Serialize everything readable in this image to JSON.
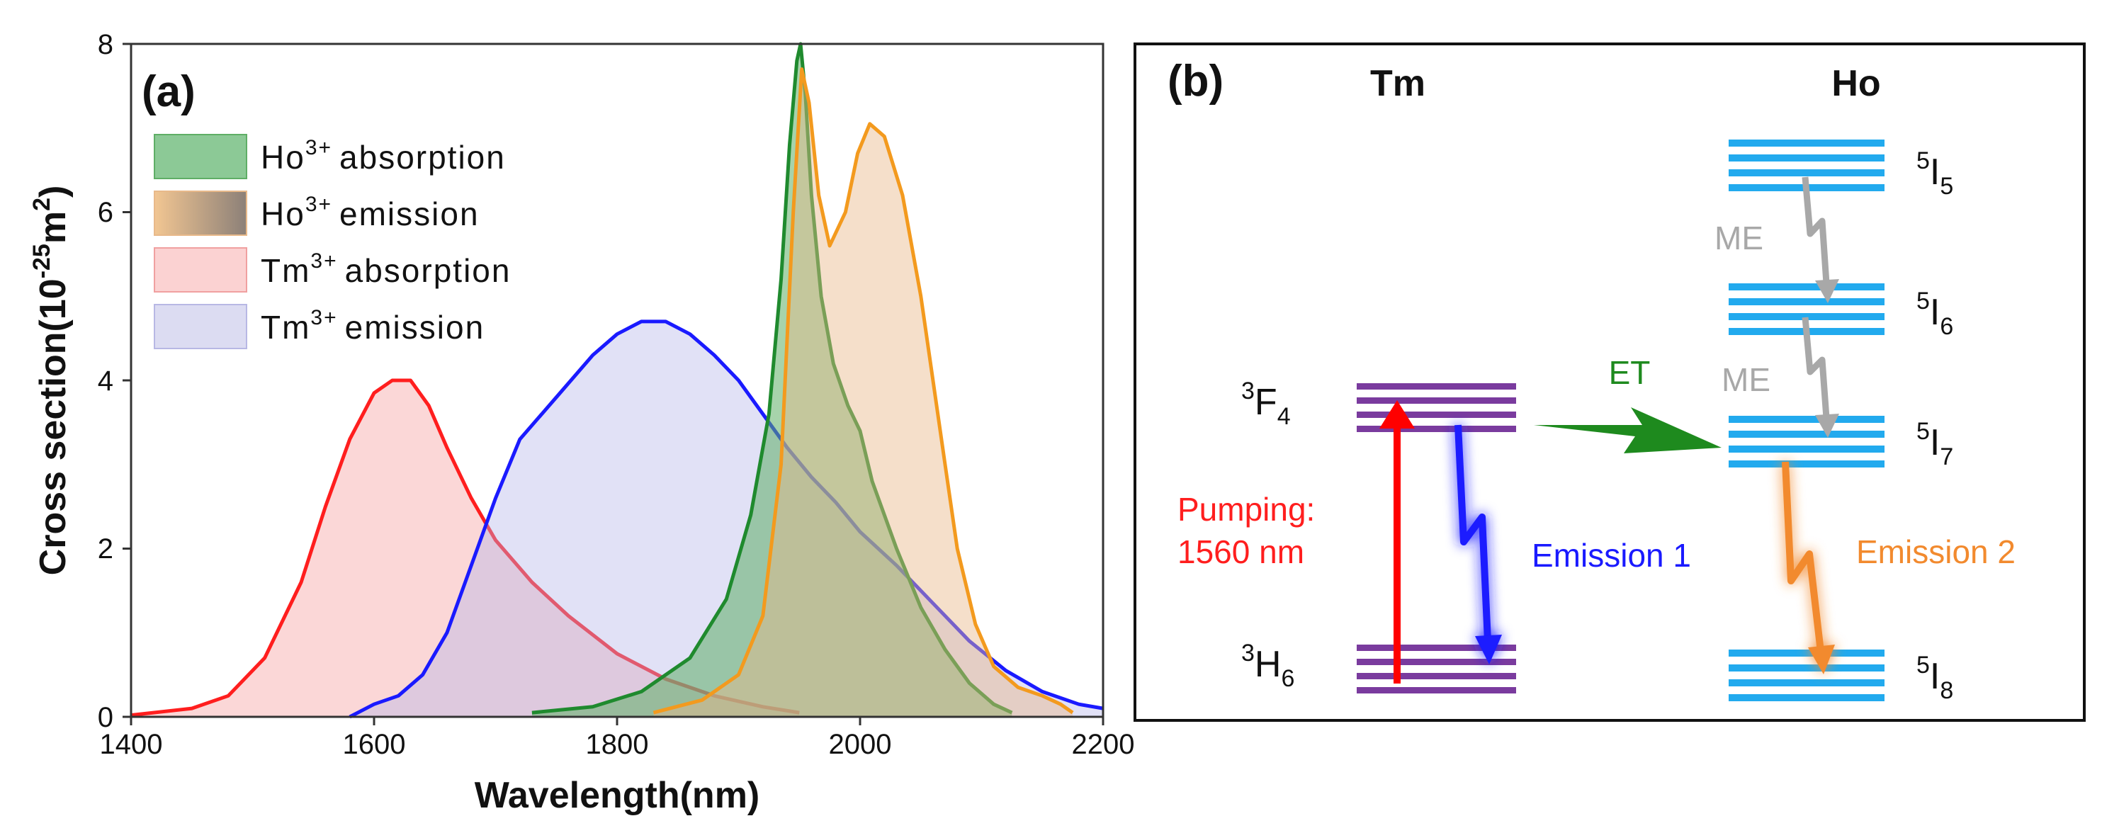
{
  "chart_data": [
    {
      "panel": "(a)",
      "type": "area",
      "xlabel": "Wavelength(nm)",
      "ylabel": "Cross section(10-25m2)",
      "ylabel_parts": {
        "main": "Cross section(10",
        "sup1": "-25",
        "mid": "m",
        "sup2": "2",
        "end": ")"
      },
      "xlim": [
        1400,
        2200
      ],
      "ylim": [
        0,
        8
      ],
      "xticks": [
        "1400",
        "1600",
        "1800",
        "2000",
        "2200"
      ],
      "yticks": [
        "0",
        "2",
        "4",
        "6",
        "8"
      ],
      "legend_position": "top-left",
      "series": [
        {
          "name": "Ho3+ absorption",
          "ion": "Ho",
          "sup": "3+",
          "kind": "absorption",
          "line_color": "#1f8a2e",
          "fill_color": "#5fae66",
          "fill_opacity": 0.55,
          "points": [
            [
              1730,
              0.05
            ],
            [
              1780,
              0.12
            ],
            [
              1820,
              0.3
            ],
            [
              1860,
              0.7
            ],
            [
              1890,
              1.4
            ],
            [
              1910,
              2.4
            ],
            [
              1925,
              3.6
            ],
            [
              1935,
              5.2
            ],
            [
              1942,
              6.8
            ],
            [
              1948,
              7.8
            ],
            [
              1951,
              8.0
            ],
            [
              1955,
              7.4
            ],
            [
              1960,
              6.2
            ],
            [
              1968,
              5.0
            ],
            [
              1978,
              4.2
            ],
            [
              1990,
              3.7
            ],
            [
              2000,
              3.4
            ],
            [
              2010,
              2.8
            ],
            [
              2030,
              2.0
            ],
            [
              2050,
              1.3
            ],
            [
              2070,
              0.8
            ],
            [
              2090,
              0.4
            ],
            [
              2110,
              0.15
            ],
            [
              2125,
              0.05
            ]
          ]
        },
        {
          "name": "Ho3+ emission",
          "ion": "Ho",
          "sup": "3+",
          "kind": "emission",
          "line_color": "#f39a1e",
          "fill_color": "#e8b98a",
          "fill_opacity": 0.45,
          "points": [
            [
              1830,
              0.05
            ],
            [
              1870,
              0.2
            ],
            [
              1900,
              0.5
            ],
            [
              1920,
              1.2
            ],
            [
              1935,
              3.0
            ],
            [
              1945,
              6.0
            ],
            [
              1952,
              7.7
            ],
            [
              1958,
              7.3
            ],
            [
              1966,
              6.2
            ],
            [
              1975,
              5.6
            ],
            [
              1988,
              6.0
            ],
            [
              1998,
              6.7
            ],
            [
              2008,
              7.05
            ],
            [
              2020,
              6.9
            ],
            [
              2035,
              6.2
            ],
            [
              2050,
              5.0
            ],
            [
              2060,
              4.0
            ],
            [
              2070,
              3.0
            ],
            [
              2080,
              2.0
            ],
            [
              2095,
              1.1
            ],
            [
              2110,
              0.6
            ],
            [
              2130,
              0.35
            ],
            [
              2150,
              0.25
            ],
            [
              2165,
              0.15
            ],
            [
              2175,
              0.05
            ]
          ]
        },
        {
          "name": "Tm3+ absorption",
          "ion": "Tm",
          "sup": "3+",
          "kind": "absorption",
          "line_color": "#ff1e1e",
          "fill_color": "#f59a9a",
          "fill_opacity": 0.4,
          "points": [
            [
              1400,
              0.02
            ],
            [
              1450,
              0.1
            ],
            [
              1480,
              0.25
            ],
            [
              1510,
              0.7
            ],
            [
              1540,
              1.6
            ],
            [
              1560,
              2.5
            ],
            [
              1580,
              3.3
            ],
            [
              1600,
              3.85
            ],
            [
              1615,
              4.0
            ],
            [
              1630,
              4.0
            ],
            [
              1645,
              3.7
            ],
            [
              1660,
              3.2
            ],
            [
              1680,
              2.6
            ],
            [
              1700,
              2.1
            ],
            [
              1730,
              1.6
            ],
            [
              1760,
              1.2
            ],
            [
              1800,
              0.75
            ],
            [
              1840,
              0.45
            ],
            [
              1880,
              0.25
            ],
            [
              1920,
              0.12
            ],
            [
              1950,
              0.05
            ]
          ]
        },
        {
          "name": "Tm3+ emission",
          "ion": "Tm",
          "sup": "3+",
          "kind": "emission",
          "line_color": "#1a1aff",
          "fill_color": "#b4b4e8",
          "fill_opacity": 0.4,
          "points": [
            [
              1580,
              0.0
            ],
            [
              1600,
              0.15
            ],
            [
              1620,
              0.25
            ],
            [
              1640,
              0.5
            ],
            [
              1660,
              1.0
            ],
            [
              1680,
              1.8
            ],
            [
              1700,
              2.6
            ],
            [
              1720,
              3.3
            ],
            [
              1750,
              3.8
            ],
            [
              1780,
              4.3
            ],
            [
              1800,
              4.55
            ],
            [
              1820,
              4.7
            ],
            [
              1840,
              4.7
            ],
            [
              1860,
              4.55
            ],
            [
              1880,
              4.3
            ],
            [
              1900,
              4.0
            ],
            [
              1920,
              3.6
            ],
            [
              1940,
              3.2
            ],
            [
              1960,
              2.85
            ],
            [
              1980,
              2.55
            ],
            [
              2000,
              2.2
            ],
            [
              2030,
              1.8
            ],
            [
              2060,
              1.35
            ],
            [
              2090,
              0.9
            ],
            [
              2120,
              0.55
            ],
            [
              2150,
              0.3
            ],
            [
              2180,
              0.15
            ],
            [
              2200,
              0.1
            ]
          ]
        }
      ]
    },
    {
      "panel": "(b)",
      "type": "diagram",
      "columns": {
        "left": "Tm",
        "right": "Ho"
      },
      "tm_levels": [
        {
          "term": "F",
          "sup": "3",
          "sub": "4"
        },
        {
          "term": "H",
          "sup": "3",
          "sub": "6"
        }
      ],
      "ho_levels": [
        {
          "term": "I",
          "sup": "5",
          "sub": "5"
        },
        {
          "term": "I",
          "sup": "5",
          "sub": "6"
        },
        {
          "term": "I",
          "sup": "5",
          "sub": "7"
        },
        {
          "term": "I",
          "sup": "5",
          "sub": "8"
        }
      ],
      "transitions": {
        "pump_label_1": "Pumping:",
        "pump_label_2": "1560 nm",
        "emission1": "Emission 1",
        "emission2": "Emission 2",
        "energy_transfer": "ET",
        "me1": "ME",
        "me2": "ME"
      },
      "colors": {
        "tm_level": "#7a3b9e",
        "ho_level": "#22aaee",
        "pump": "#ff0000",
        "emission1": "#1a1aff",
        "emission2": "#f28a2e",
        "energy_transfer": "#1e8a1e",
        "me": "#a8a8a8"
      }
    }
  ]
}
